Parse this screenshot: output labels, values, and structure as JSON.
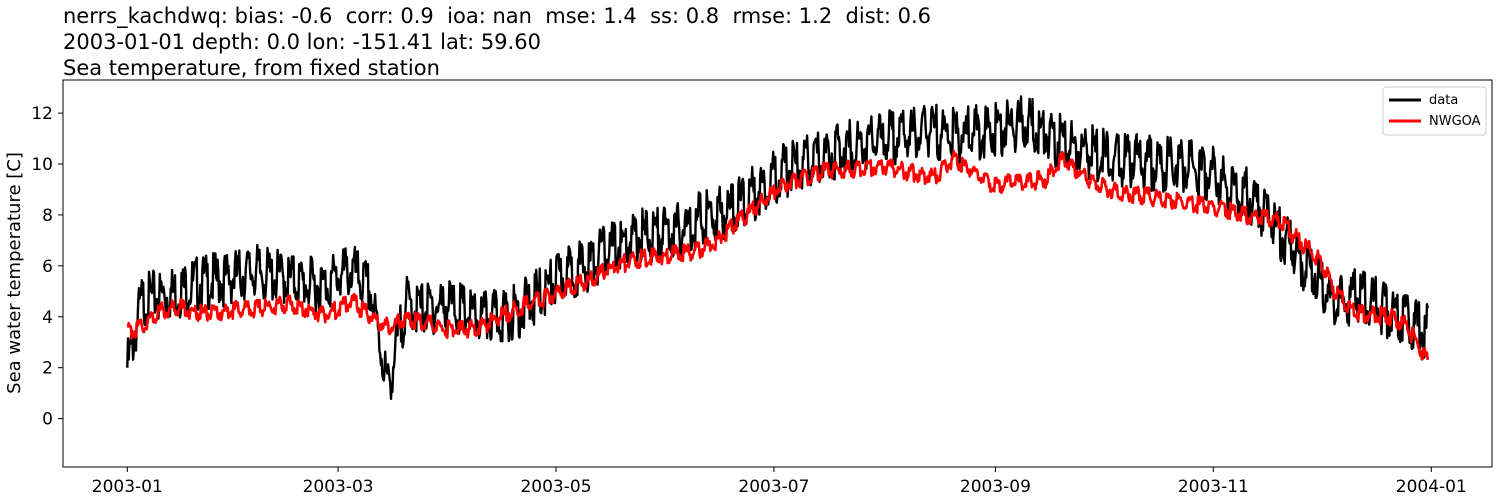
{
  "header": {
    "line1": "nerrs_kachdwq: bias: -0.6  corr: 0.9  ioa: nan  mse: 1.4  ss: 0.8  rmse: 1.2  dist: 0.6",
    "line2": "2003-01-01 depth: 0.0 lon: -151.41 lat: 59.60",
    "line3": "Sea temperature, from fixed station"
  },
  "chart_data": {
    "type": "line",
    "title": "Sea temperature, from fixed station",
    "xlabel": "",
    "ylabel": "Sea water temperature [C]",
    "x_tick_labels": [
      "2003-01",
      "2003-03",
      "2003-05",
      "2003-07",
      "2003-09",
      "2003-11",
      "2004-01"
    ],
    "y_ticks": [
      0,
      2,
      4,
      6,
      8,
      10,
      12
    ],
    "ylim": [
      -1.9,
      13.3
    ],
    "xlim": [
      "2002-12-14",
      "2004-01-18"
    ],
    "grid": false,
    "legend_position": "top-right",
    "x": [
      "2003-01-01",
      "2003-01-05",
      "2003-01-10",
      "2003-01-15",
      "2003-01-20",
      "2003-01-25",
      "2003-02-01",
      "2003-02-05",
      "2003-02-10",
      "2003-02-15",
      "2003-02-20",
      "2003-02-25",
      "2003-03-01",
      "2003-03-05",
      "2003-03-10",
      "2003-03-15",
      "2003-03-20",
      "2003-03-25",
      "2003-04-01",
      "2003-04-05",
      "2003-04-10",
      "2003-04-15",
      "2003-04-20",
      "2003-04-25",
      "2003-05-01",
      "2003-05-05",
      "2003-05-10",
      "2003-05-15",
      "2003-05-20",
      "2003-05-25",
      "2003-06-01",
      "2003-06-05",
      "2003-06-10",
      "2003-06-15",
      "2003-06-20",
      "2003-06-25",
      "2003-07-01",
      "2003-07-05",
      "2003-07-10",
      "2003-07-15",
      "2003-07-20",
      "2003-07-25",
      "2003-08-01",
      "2003-08-05",
      "2003-08-10",
      "2003-08-15",
      "2003-08-20",
      "2003-08-25",
      "2003-09-01",
      "2003-09-05",
      "2003-09-10",
      "2003-09-15",
      "2003-09-20",
      "2003-09-25",
      "2003-10-01",
      "2003-10-05",
      "2003-10-10",
      "2003-10-15",
      "2003-10-20",
      "2003-10-25",
      "2003-11-01",
      "2003-11-05",
      "2003-11-10",
      "2003-11-15",
      "2003-11-20",
      "2003-11-25",
      "2003-12-01",
      "2003-12-05",
      "2003-12-10",
      "2003-12-15",
      "2003-12-20",
      "2003-12-25",
      "2003-12-31"
    ],
    "series": [
      {
        "name": "data",
        "color": "#000000",
        "values": [
          2.0,
          4.6,
          4.8,
          5.0,
          5.3,
          5.4,
          5.6,
          5.8,
          5.6,
          5.5,
          5.3,
          5.2,
          5.6,
          5.8,
          5.0,
          1.2,
          4.5,
          4.3,
          4.5,
          4.2,
          3.9,
          4.0,
          4.2,
          4.7,
          5.4,
          5.8,
          6.0,
          6.6,
          6.8,
          7.2,
          7.3,
          7.4,
          7.8,
          8.0,
          8.3,
          8.8,
          9.5,
          9.8,
          10.0,
          10.3,
          10.6,
          10.8,
          11.0,
          11.1,
          11.2,
          11.3,
          11.1,
          11.2,
          11.3,
          11.5,
          11.6,
          11.2,
          10.8,
          10.6,
          10.3,
          10.2,
          10.1,
          10.0,
          10.0,
          9.9,
          9.6,
          9.2,
          8.8,
          8.2,
          7.2,
          6.3,
          5.5,
          4.4,
          4.8,
          4.6,
          4.2,
          3.9,
          3.4
        ]
      },
      {
        "name": "NWGOA",
        "color": "#ff0000",
        "values": [
          3.4,
          3.6,
          4.2,
          4.4,
          4.2,
          4.1,
          4.3,
          4.3,
          4.4,
          4.5,
          4.3,
          4.1,
          4.3,
          4.6,
          4.0,
          3.6,
          3.9,
          3.8,
          3.5,
          3.5,
          3.6,
          4.0,
          4.3,
          4.6,
          4.9,
          5.2,
          5.4,
          5.8,
          6.1,
          6.3,
          6.4,
          6.5,
          6.6,
          7.0,
          7.6,
          8.2,
          8.9,
          9.3,
          9.5,
          9.7,
          9.8,
          9.8,
          9.9,
          9.8,
          9.6,
          9.5,
          10.2,
          9.8,
          9.1,
          9.3,
          9.3,
          9.4,
          10.2,
          9.6,
          9.1,
          8.9,
          8.8,
          8.7,
          8.6,
          8.5,
          8.3,
          8.2,
          8.0,
          7.9,
          7.7,
          7.0,
          6.2,
          5.0,
          4.2,
          4.1,
          4.0,
          3.7,
          2.2
        ]
      }
    ]
  }
}
